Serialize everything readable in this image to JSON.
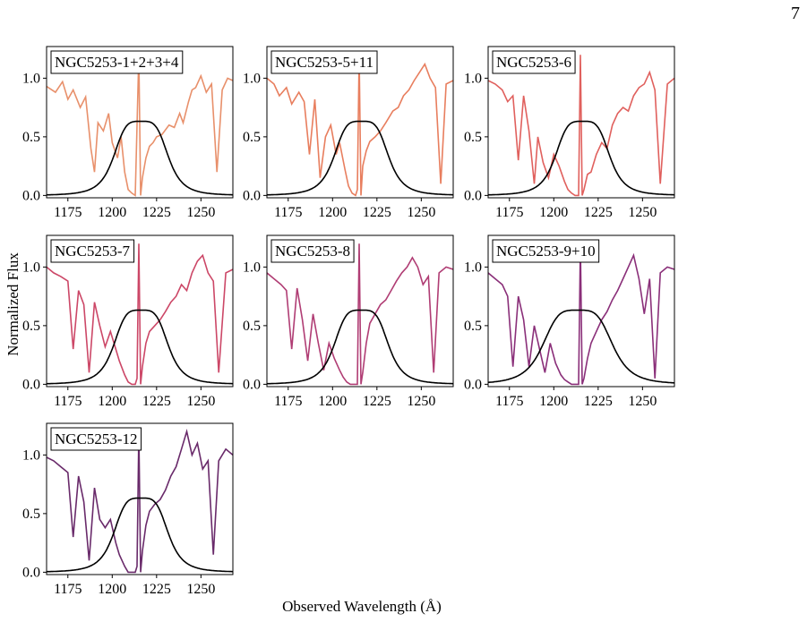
{
  "page": {
    "number": "7"
  },
  "figure": {
    "ylabel": "Normalized Flux",
    "xlabel": "Observed Wavelength (Å)"
  },
  "chart_data": [
    {
      "type": "line",
      "title": "NGC5253-1+2+3+4",
      "color": "#e8906b",
      "xlim": [
        1163,
        1268
      ],
      "ylim": [
        -0.02,
        1.27
      ],
      "xticks": [
        1175,
        1200,
        1225,
        1250
      ],
      "yticks": [
        "0.0",
        "0.5",
        "1.0"
      ],
      "fit": {
        "center": 1216.2,
        "width": 14
      },
      "series": {
        "name": "",
        "x": [
          1163,
          1168,
          1172,
          1175,
          1178,
          1182,
          1185,
          1188,
          1190,
          1192,
          1195,
          1198,
          1200,
          1203,
          1205,
          1207,
          1209,
          1211,
          1213,
          1215,
          1216,
          1217,
          1219,
          1221,
          1223,
          1225,
          1228,
          1232,
          1235,
          1238,
          1240,
          1243,
          1245,
          1247,
          1250,
          1253,
          1256,
          1259,
          1262,
          1265,
          1268
        ],
        "y": [
          0.93,
          0.88,
          0.97,
          0.82,
          0.9,
          0.75,
          0.84,
          0.4,
          0.2,
          0.62,
          0.55,
          0.7,
          0.45,
          0.32,
          0.5,
          0.2,
          0.05,
          0.02,
          0.0,
          1.2,
          0.0,
          0.15,
          0.32,
          0.42,
          0.45,
          0.5,
          0.52,
          0.6,
          0.58,
          0.7,
          0.62,
          0.8,
          0.9,
          0.92,
          1.02,
          0.88,
          0.95,
          0.2,
          0.9,
          1.0,
          0.98
        ]
      }
    },
    {
      "type": "line",
      "title": "NGC5253-5+11",
      "color": "#e87e5e",
      "xlim": [
        1163,
        1268
      ],
      "ylim": [
        -0.02,
        1.27
      ],
      "xticks": [
        1175,
        1200,
        1225,
        1250
      ],
      "yticks": [
        "0.0",
        "0.5",
        "1.0"
      ],
      "fit": {
        "center": 1216.2,
        "width": 14
      },
      "series": {
        "name": "",
        "x": [
          1163,
          1167,
          1170,
          1174,
          1177,
          1181,
          1184,
          1187,
          1190,
          1193,
          1196,
          1199,
          1202,
          1204,
          1207,
          1209,
          1211,
          1213,
          1214,
          1215,
          1216,
          1217,
          1219,
          1221,
          1224,
          1227,
          1230,
          1234,
          1237,
          1240,
          1243,
          1246,
          1249,
          1252,
          1255,
          1258,
          1261,
          1264,
          1268
        ],
        "y": [
          1.0,
          0.95,
          0.85,
          0.92,
          0.78,
          0.88,
          0.8,
          0.35,
          0.82,
          0.15,
          0.5,
          0.6,
          0.35,
          0.45,
          0.22,
          0.08,
          0.02,
          0.0,
          0.05,
          1.2,
          0.0,
          0.25,
          0.38,
          0.46,
          0.5,
          0.55,
          0.62,
          0.72,
          0.75,
          0.85,
          0.9,
          0.98,
          1.05,
          1.12,
          1.0,
          0.92,
          0.1,
          0.95,
          0.98
        ]
      }
    },
    {
      "type": "line",
      "title": "NGC5253-6",
      "color": "#e0605d",
      "xlim": [
        1163,
        1268
      ],
      "ylim": [
        -0.02,
        1.27
      ],
      "xticks": [
        1175,
        1200,
        1225,
        1250
      ],
      "yticks": [
        "0.0",
        "0.5",
        "1.0"
      ],
      "fit": {
        "center": 1216.2,
        "width": 14
      },
      "series": {
        "name": "",
        "x": [
          1163,
          1167,
          1171,
          1174,
          1177,
          1180,
          1183,
          1186,
          1189,
          1191,
          1194,
          1197,
          1200,
          1203,
          1206,
          1208,
          1210,
          1212,
          1214,
          1215,
          1216,
          1217,
          1219,
          1221,
          1224,
          1227,
          1230,
          1233,
          1236,
          1239,
          1242,
          1245,
          1248,
          1251,
          1254,
          1257,
          1260,
          1264,
          1268
        ],
        "y": [
          0.98,
          0.95,
          0.9,
          0.8,
          0.85,
          0.3,
          0.85,
          0.55,
          0.1,
          0.5,
          0.28,
          0.15,
          0.35,
          0.25,
          0.12,
          0.05,
          0.02,
          0.0,
          0.0,
          1.2,
          0.0,
          0.05,
          0.18,
          0.2,
          0.35,
          0.45,
          0.4,
          0.6,
          0.7,
          0.75,
          0.72,
          0.85,
          0.92,
          0.95,
          1.05,
          0.9,
          0.1,
          0.95,
          1.0
        ]
      }
    },
    {
      "type": "line",
      "title": "NGC5253-7",
      "color": "#cc4767",
      "xlim": [
        1163,
        1268
      ],
      "ylim": [
        -0.02,
        1.27
      ],
      "xticks": [
        1175,
        1200,
        1225,
        1250
      ],
      "yticks": [
        "0.0",
        "0.5",
        "1.0"
      ],
      "fit": {
        "center": 1216.2,
        "width": 14
      },
      "series": {
        "name": "",
        "x": [
          1163,
          1167,
          1171,
          1175,
          1178,
          1181,
          1184,
          1187,
          1190,
          1193,
          1196,
          1199,
          1202,
          1204,
          1207,
          1209,
          1211,
          1213,
          1214,
          1215,
          1216,
          1217,
          1219,
          1221,
          1224,
          1227,
          1230,
          1233,
          1236,
          1239,
          1242,
          1245,
          1248,
          1251,
          1254,
          1257,
          1260,
          1264,
          1268
        ],
        "y": [
          1.0,
          0.95,
          0.92,
          0.88,
          0.3,
          0.8,
          0.68,
          0.1,
          0.7,
          0.5,
          0.32,
          0.45,
          0.3,
          0.2,
          0.08,
          0.02,
          0.0,
          0.0,
          0.05,
          1.2,
          0.0,
          0.15,
          0.35,
          0.45,
          0.5,
          0.55,
          0.62,
          0.7,
          0.75,
          0.85,
          0.8,
          0.95,
          1.05,
          1.1,
          0.95,
          0.88,
          0.1,
          0.95,
          0.98
        ]
      }
    },
    {
      "type": "line",
      "title": "NGC5253-8",
      "color": "#b03d74",
      "xlim": [
        1163,
        1268
      ],
      "ylim": [
        -0.02,
        1.27
      ],
      "xticks": [
        1175,
        1200,
        1225,
        1250
      ],
      "yticks": [
        "0.0",
        "0.5",
        "1.0"
      ],
      "fit": {
        "center": 1216.2,
        "width": 14
      },
      "series": {
        "name": "",
        "x": [
          1163,
          1167,
          1171,
          1174,
          1177,
          1180,
          1183,
          1186,
          1189,
          1192,
          1195,
          1198,
          1201,
          1204,
          1206,
          1208,
          1210,
          1212,
          1214,
          1215,
          1216,
          1217,
          1219,
          1221,
          1224,
          1227,
          1230,
          1233,
          1236,
          1239,
          1242,
          1245,
          1248,
          1251,
          1254,
          1257,
          1260,
          1264,
          1268
        ],
        "y": [
          0.95,
          0.9,
          0.85,
          0.8,
          0.3,
          0.82,
          0.55,
          0.2,
          0.6,
          0.35,
          0.12,
          0.35,
          0.22,
          0.12,
          0.06,
          0.02,
          0.0,
          0.0,
          0.0,
          1.2,
          0.0,
          0.1,
          0.35,
          0.52,
          0.6,
          0.68,
          0.72,
          0.8,
          0.88,
          0.95,
          1.0,
          1.08,
          1.0,
          0.85,
          0.92,
          0.1,
          0.95,
          1.0,
          0.98
        ]
      }
    },
    {
      "type": "line",
      "title": "NGC5253-9+10",
      "color": "#8a2f79",
      "xlim": [
        1163,
        1268
      ],
      "ylim": [
        -0.02,
        1.27
      ],
      "xticks": [
        1175,
        1200,
        1225,
        1250
      ],
      "yticks": [
        "0.0",
        "0.5",
        "1.0"
      ],
      "fit": {
        "center": 1213.5,
        "width": 18
      },
      "series": {
        "name": "",
        "x": [
          1163,
          1167,
          1171,
          1174,
          1177,
          1180,
          1183,
          1186,
          1189,
          1192,
          1195,
          1198,
          1201,
          1204,
          1206,
          1208,
          1210,
          1212,
          1214,
          1215,
          1216,
          1217,
          1219,
          1221,
          1224,
          1227,
          1230,
          1233,
          1236,
          1239,
          1242,
          1245,
          1248,
          1251,
          1254,
          1257,
          1260,
          1264,
          1268
        ],
        "y": [
          0.95,
          0.9,
          0.85,
          0.75,
          0.15,
          0.75,
          0.55,
          0.15,
          0.5,
          0.3,
          0.1,
          0.35,
          0.18,
          0.08,
          0.04,
          0.02,
          0.0,
          0.0,
          0.0,
          1.2,
          0.0,
          0.05,
          0.22,
          0.35,
          0.45,
          0.55,
          0.62,
          0.72,
          0.8,
          0.9,
          1.0,
          1.1,
          0.9,
          0.6,
          0.9,
          0.05,
          0.95,
          1.0,
          0.98
        ]
      }
    },
    {
      "type": "line",
      "title": "NGC5253-12",
      "color": "#692a6a",
      "xlim": [
        1163,
        1268
      ],
      "ylim": [
        -0.02,
        1.27
      ],
      "xticks": [
        1175,
        1200,
        1225,
        1250
      ],
      "yticks": [
        "0.0",
        "0.5",
        "1.0"
      ],
      "fit": {
        "center": 1216.2,
        "width": 14
      },
      "series": {
        "name": "",
        "x": [
          1163,
          1167,
          1171,
          1175,
          1178,
          1181,
          1184,
          1187,
          1190,
          1193,
          1196,
          1199,
          1202,
          1204,
          1207,
          1209,
          1211,
          1213,
          1214,
          1215,
          1216,
          1217,
          1219,
          1221,
          1224,
          1227,
          1230,
          1233,
          1236,
          1239,
          1242,
          1245,
          1248,
          1251,
          1254,
          1257,
          1260,
          1264,
          1268
        ],
        "y": [
          0.98,
          0.95,
          0.9,
          0.85,
          0.3,
          0.82,
          0.6,
          0.1,
          0.72,
          0.45,
          0.38,
          0.45,
          0.25,
          0.15,
          0.05,
          0.0,
          0.0,
          0.0,
          0.05,
          1.2,
          0.0,
          0.18,
          0.4,
          0.52,
          0.58,
          0.62,
          0.7,
          0.82,
          0.9,
          1.05,
          1.2,
          1.0,
          1.1,
          0.88,
          0.95,
          0.15,
          0.95,
          1.05,
          1.0
        ]
      }
    }
  ]
}
